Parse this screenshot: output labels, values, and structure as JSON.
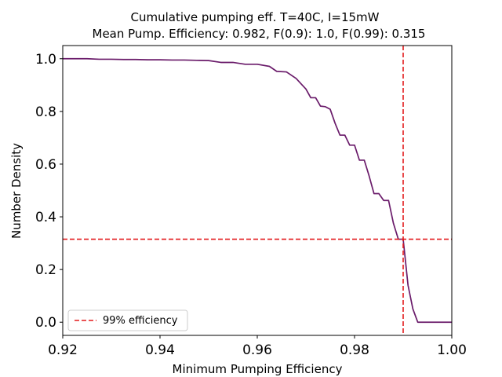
{
  "chart_data": {
    "type": "line",
    "title_line1": "Cumulative pumping eff. T=40C, I=15mW",
    "title_line2": "Mean Pump. Efficiency: 0.982, F(0.9): 1.0, F(0.99): 0.315",
    "xlabel": "Minimum Pumping Efficiency",
    "ylabel": "Number Density",
    "xlim": [
      0.92,
      1.0
    ],
    "ylim": [
      -0.05,
      1.05
    ],
    "xticks": [
      "0.92",
      "0.94",
      "0.96",
      "0.98",
      "1.00"
    ],
    "yticks": [
      "0.0",
      "0.2",
      "0.4",
      "0.6",
      "0.8",
      "1.0"
    ],
    "grid": false,
    "legend_position": "lower-left",
    "series": [
      {
        "color": "#6a1b6a",
        "x": [
          0.92,
          0.925,
          0.9275,
          0.93,
          0.9325,
          0.935,
          0.9375,
          0.94,
          0.9425,
          0.945,
          0.9475,
          0.95,
          0.9525,
          0.955,
          0.9575,
          0.96,
          0.9625,
          0.964,
          0.966,
          0.968,
          0.969,
          0.97,
          0.971,
          0.972,
          0.973,
          0.974,
          0.975,
          0.976,
          0.977,
          0.978,
          0.979,
          0.98,
          0.981,
          0.982,
          0.983,
          0.984,
          0.985,
          0.986,
          0.987,
          0.988,
          0.989,
          0.99,
          0.991,
          0.992,
          0.993,
          0.994,
          0.996,
          1.0
        ],
        "y": [
          1.0,
          1.0,
          0.998,
          0.998,
          0.997,
          0.997,
          0.996,
          0.996,
          0.995,
          0.995,
          0.994,
          0.993,
          0.986,
          0.986,
          0.979,
          0.979,
          0.971,
          0.952,
          0.95,
          0.925,
          0.905,
          0.885,
          0.852,
          0.852,
          0.82,
          0.818,
          0.808,
          0.755,
          0.71,
          0.71,
          0.672,
          0.672,
          0.615,
          0.615,
          0.555,
          0.488,
          0.488,
          0.462,
          0.462,
          0.375,
          0.315,
          0.315,
          0.14,
          0.05,
          0.0,
          0.0,
          0.0,
          0.0
        ]
      }
    ],
    "reference_lines": [
      {
        "orientation": "vertical",
        "value": 0.99,
        "color": "#e31a1c",
        "style": "dashed"
      },
      {
        "orientation": "horizontal",
        "value": 0.315,
        "color": "#e31a1c",
        "style": "dashed"
      }
    ],
    "legend": [
      {
        "label": "99% efficiency",
        "color": "#e31a1c",
        "style": "dashed"
      }
    ]
  }
}
